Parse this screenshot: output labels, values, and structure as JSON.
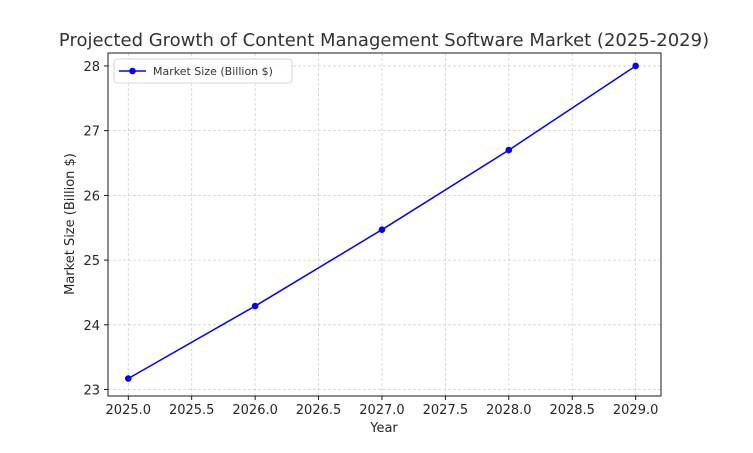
{
  "chart_data": {
    "type": "line",
    "title": "Projected Growth of Content Management Software Market (2025-2029)",
    "xlabel": "Year",
    "ylabel": "Market Size (Billion $)",
    "xlim": [
      2024.84,
      2029.2
    ],
    "ylim": [
      22.9,
      28.2
    ],
    "xticks": [
      "2025.0",
      "2025.5",
      "2026.0",
      "2026.5",
      "2027.0",
      "2027.5",
      "2028.0",
      "2028.5",
      "2029.0"
    ],
    "yticks": [
      "23",
      "24",
      "25",
      "26",
      "27",
      "28"
    ],
    "grid": true,
    "legend": "upper left",
    "series": [
      {
        "name": "Market Size (Billion $)",
        "color": "#0000ff",
        "marker": "circle",
        "x": [
          2025,
          2026,
          2027,
          2028,
          2029
        ],
        "y": [
          23.17,
          24.29,
          25.47,
          26.7,
          28.0
        ]
      }
    ]
  }
}
